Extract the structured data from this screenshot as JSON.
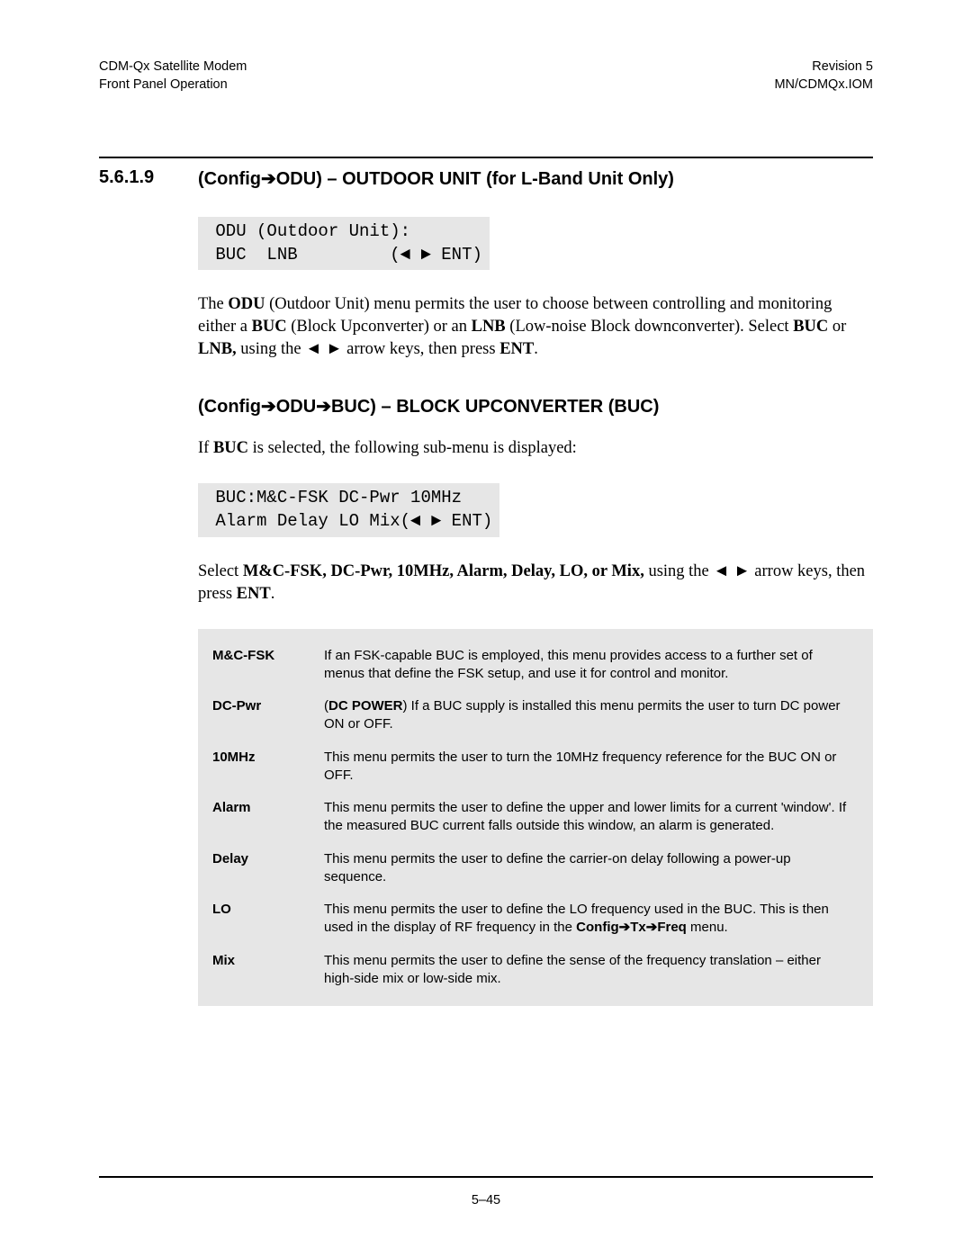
{
  "header": {
    "left_line1": "CDM-Qx Satellite Modem",
    "left_line2": "Front Panel Operation",
    "right_line1": "Revision 5",
    "right_line2": "MN/CDMQx.IOM"
  },
  "section": {
    "number": "5.6.1.9",
    "title_prefix": "(Config",
    "title_after_arrow": "ODU) – OUTDOOR UNIT (for L-Band Unit Only)"
  },
  "lcd1": {
    "line1": " ODU (Outdoor Unit):",
    "line2_pre": " BUC  LNB         (",
    "line2_post": " ENT)"
  },
  "para1": {
    "pre": "The ",
    "b1": "ODU",
    "t1": " (Outdoor Unit) menu permits the user to choose between controlling and monitoring either a ",
    "b2": "BUC",
    "t2": " (Block Upconverter) or an ",
    "b3": "LNB",
    "t3": " (Low-noise Block downconverter). Select ",
    "b4": "BUC",
    "t4": " or ",
    "b5": "LNB,",
    "t5": " using the ",
    "t6": "  arrow keys, then press ",
    "b6": "ENT",
    "t7": "."
  },
  "subheading": {
    "prefix": "(Config",
    "mid": "ODU",
    "suffix": "BUC) – BLOCK UPCONVERTER (BUC)"
  },
  "para2": {
    "pre": "If ",
    "b1": "BUC",
    "post": " is selected, the following sub-menu is displayed:"
  },
  "lcd2": {
    "line1": " BUC:M&C-FSK DC-Pwr 10MHz",
    "line2_pre": " Alarm Delay LO Mix(",
    "line2_post": " ENT)"
  },
  "para3": {
    "pre": "Select ",
    "b1": "M&C-FSK, DC-Pwr, 10MHz, Alarm, Delay, LO, or Mix,",
    "mid": " using the ",
    "post": "  arrow keys, then press ",
    "b2": "ENT",
    "end": "."
  },
  "table": {
    "rows": [
      {
        "label": "M&C-FSK",
        "desc": "If an FSK-capable BUC is employed, this menu provides access to a further set of menus that define the FSK setup, and use it for control and monitor."
      },
      {
        "label": "DC-Pwr",
        "desc_pre": "(",
        "desc_b": "DC POWER",
        "desc_post": ") If a BUC supply is installed this menu permits the user to turn DC power ON or OFF."
      },
      {
        "label": "10MHz",
        "desc": "This menu permits the user to turn the 10MHz frequency reference for the BUC ON or OFF."
      },
      {
        "label": "Alarm",
        "desc": "This menu permits the user to define the upper and lower limits for a current 'window'. If the measured BUC current falls outside this window, an alarm is generated."
      },
      {
        "label": "Delay",
        "desc": "This menu permits the user to define the carrier-on delay following a power-up sequence."
      },
      {
        "label": "LO",
        "desc_pre": "This menu permits the user to define the LO frequency used in the BUC. This is then used in the display of RF frequency in the ",
        "desc_b1": "Config",
        "desc_b2": "Tx",
        "desc_b3": "Freq",
        "desc_post": " menu."
      },
      {
        "label": "Mix",
        "desc": "This menu permits the user to define the sense of the frequency translation – either high-side mix or low-side mix."
      }
    ]
  },
  "glyphs": {
    "arrow_right_thick": "➔",
    "tri_left": "◄",
    "tri_right": "►"
  },
  "footer": {
    "page_num": "5–45"
  }
}
